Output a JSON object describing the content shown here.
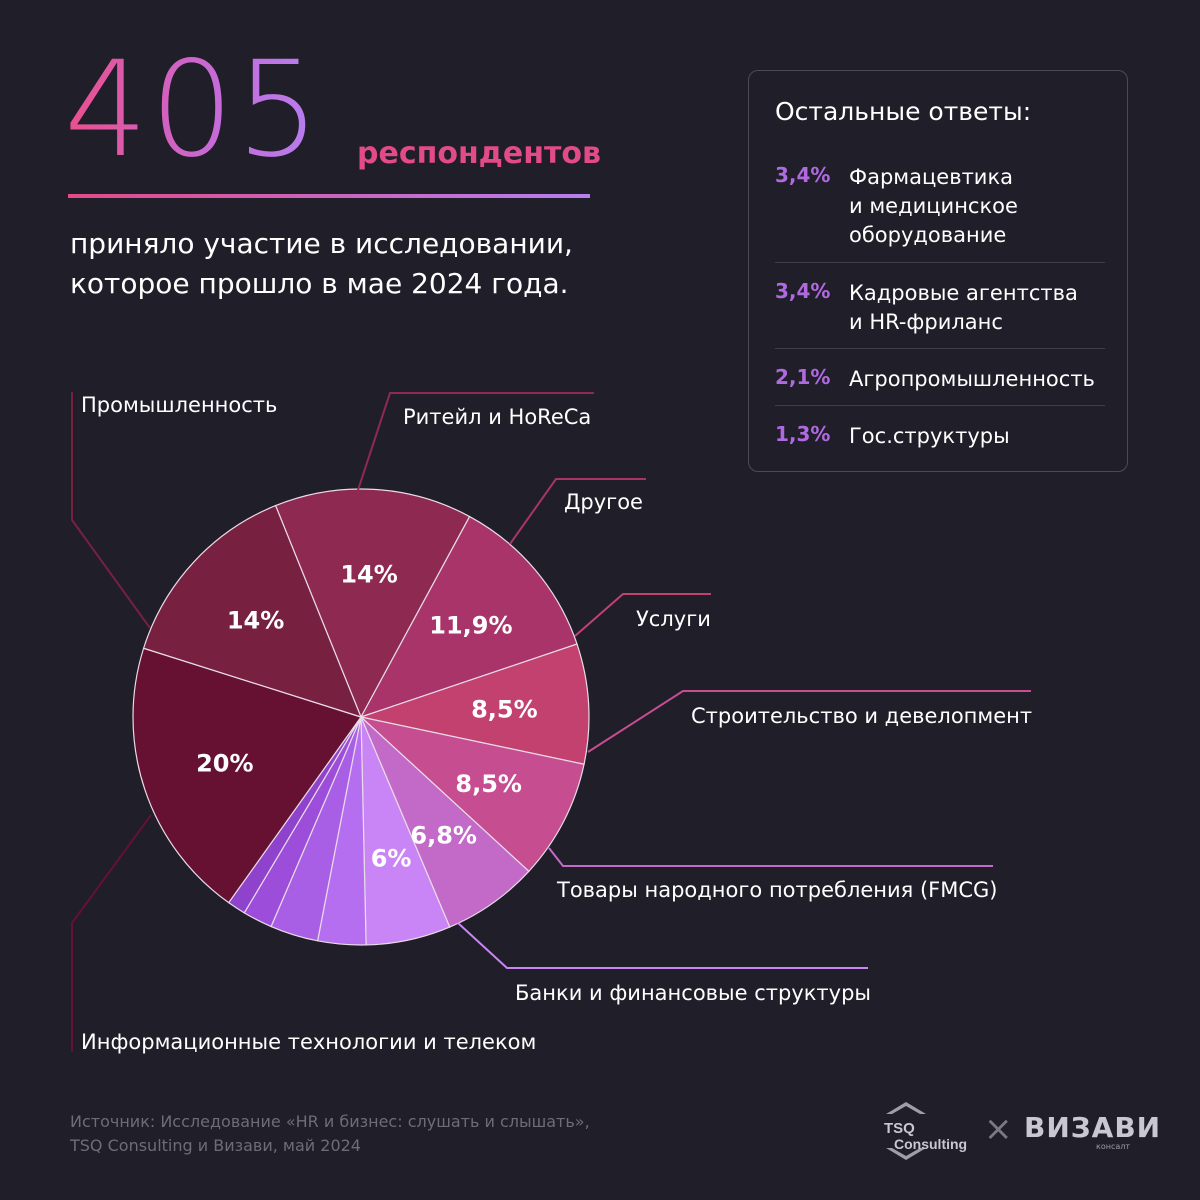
{
  "header": {
    "number": "405",
    "unit": "респондентов",
    "subtitle_line1": "приняло участие в исследовании,",
    "subtitle_line2": "которое прошло в мае 2024 года."
  },
  "other_answers": {
    "title": "Остальные ответы:",
    "items": [
      {
        "pct": "3,4%",
        "label": "Фармацевтика\nи медицинское\nоборудование"
      },
      {
        "pct": "3,4%",
        "label": "Кадровые агентства\nи HR-фриланс"
      },
      {
        "pct": "2,1%",
        "label": "Агропромышленность"
      },
      {
        "pct": "1,3%",
        "label": "Гос.структуры"
      }
    ]
  },
  "chart_data": {
    "type": "pie",
    "slices": [
      {
        "name": "Ритейл и HoReCa",
        "value": 14,
        "label": "14%",
        "color": "#8e2a52"
      },
      {
        "name": "Другое",
        "value": 11.9,
        "label": "11,9%",
        "color": "#a8346a"
      },
      {
        "name": "Услуги",
        "value": 8.5,
        "label": "8,5%",
        "color": "#c2416f"
      },
      {
        "name": "Строительство и девелопмент",
        "value": 8.5,
        "label": "8,5%",
        "color": "#c74d91"
      },
      {
        "name": "Товары народного потребления (FMCG)",
        "value": 6.8,
        "label": "6,8%",
        "color": "#c36ac8"
      },
      {
        "name": "Банки и финансовые структуры",
        "value": 6,
        "label": "6%",
        "color": "#c984f5"
      },
      {
        "name": "Фармацевтика и медицинское оборудование",
        "value": 3.4,
        "label": "",
        "color": "#b56ef0"
      },
      {
        "name": "Кадровые агентства и HR-фриланс",
        "value": 3.4,
        "label": "",
        "color": "#a95ee6"
      },
      {
        "name": "Агропромышленность",
        "value": 2.1,
        "label": "",
        "color": "#9c4edb"
      },
      {
        "name": "Гос.структуры",
        "value": 1.3,
        "label": "",
        "color": "#8f42cc"
      },
      {
        "name": "Информационные технологии и телеком",
        "value": 20,
        "label": "20%",
        "color": "#661132"
      },
      {
        "name": "Промышленность",
        "value": 14,
        "label": "14%",
        "color": "#782040"
      }
    ]
  },
  "footer": {
    "source_line1": "Источник: Исследование «HR и бизнес: слушать и слышать»,",
    "source_line2": "TSQ Consulting и Визави, май 2024",
    "logo1_line1": "TSQ",
    "logo1_line2": "Consulting",
    "separator": "×",
    "logo2": "ВИЗАВИ",
    "logo2_sub": "консалт"
  }
}
